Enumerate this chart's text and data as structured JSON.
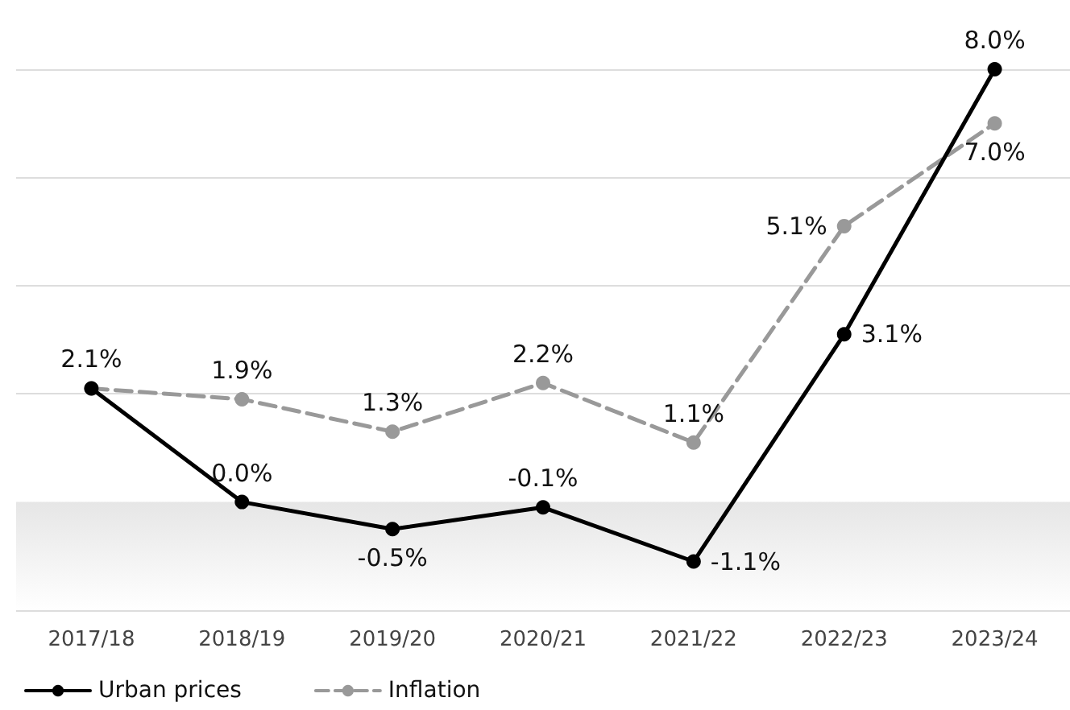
{
  "chart_data": {
    "type": "line",
    "categories": [
      "2017/18",
      "2018/19",
      "2019/20",
      "2020/21",
      "2021/22",
      "2022/23",
      "2023/24"
    ],
    "series": [
      {
        "name": "Urban prices",
        "color": "#000000",
        "line_style": "solid",
        "values": [
          2.1,
          0.0,
          -0.5,
          -0.1,
          -1.1,
          3.1,
          8.0
        ],
        "value_labels": [
          "2.1%",
          "0.0%",
          "-0.5%",
          "-0.1%",
          "-1.1%",
          "3.1%",
          "8.0%"
        ]
      },
      {
        "name": "Inflation",
        "color": "#999999",
        "line_style": "dashed",
        "values": [
          2.1,
          1.9,
          1.3,
          2.2,
          1.1,
          5.1,
          7.0
        ],
        "value_labels": [
          null,
          "1.9%",
          "1.3%",
          "2.2%",
          "1.1%",
          "5.1%",
          "7.0%"
        ]
      }
    ],
    "ylim": [
      -2,
      8
    ],
    "tick_labels": "x",
    "grid": "y",
    "marker": "circle",
    "legend": "bottom left",
    "bands": [
      {
        "axis": "y",
        "from": -2,
        "to": 0,
        "color": "#e6e6e6"
      }
    ]
  }
}
